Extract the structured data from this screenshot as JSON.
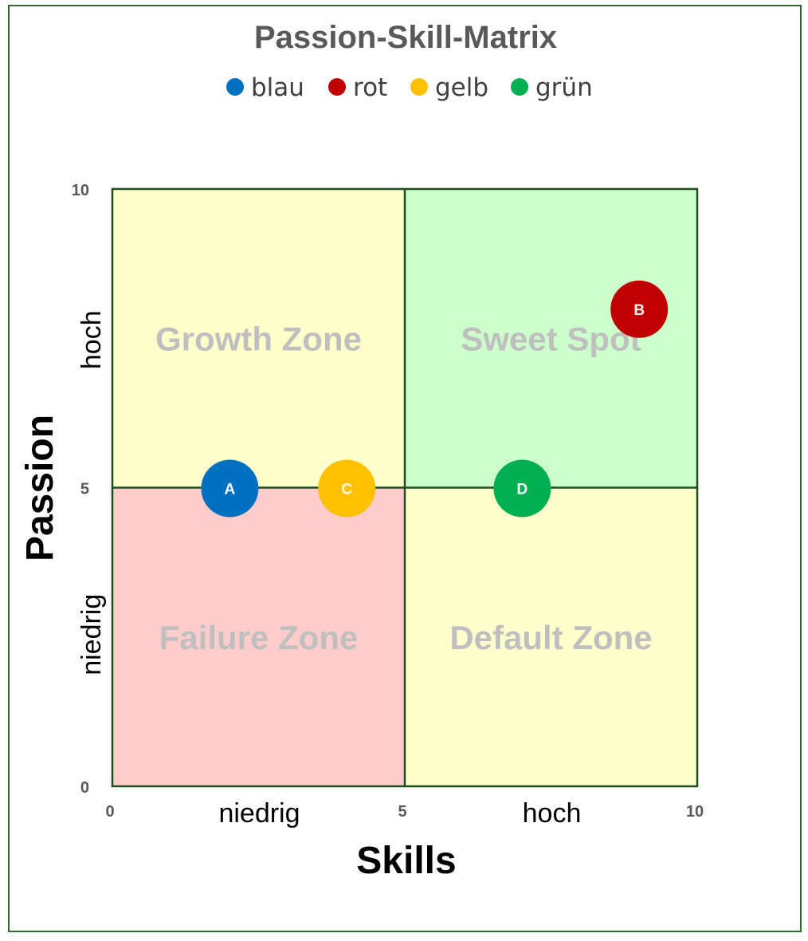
{
  "chart_data": {
    "type": "scatter",
    "title": "Passion-Skill-Matrix",
    "xlabel": "Skills",
    "ylabel": "Passion",
    "xlim": [
      0,
      10
    ],
    "ylim": [
      0,
      10
    ],
    "x_ticks": [
      "0",
      "5",
      "10"
    ],
    "y_ticks": [
      "0",
      "5",
      "10"
    ],
    "x_categories": [
      "niedrig",
      "hoch"
    ],
    "y_categories": [
      "niedrig",
      "hoch"
    ],
    "legend_position": "top",
    "zones": [
      {
        "name": "Growth Zone",
        "x": [
          0,
          5
        ],
        "y": [
          5,
          10
        ],
        "color": "#ffffcc"
      },
      {
        "name": "Sweet Spot",
        "x": [
          5,
          10
        ],
        "y": [
          5,
          10
        ],
        "color": "#ccffcc"
      },
      {
        "name": "Failure Zone",
        "x": [
          0,
          5
        ],
        "y": [
          0,
          5
        ],
        "color": "#ffcccc"
      },
      {
        "name": "Default Zone",
        "x": [
          5,
          10
        ],
        "y": [
          0,
          5
        ],
        "color": "#ffffcc"
      }
    ],
    "series": [
      {
        "name": "blau",
        "color": "#0070c0",
        "points": [
          {
            "label": "A",
            "x": 2,
            "y": 5
          }
        ]
      },
      {
        "name": "rot",
        "color": "#c00000",
        "points": [
          {
            "label": "B",
            "x": 9,
            "y": 8
          }
        ]
      },
      {
        "name": "gelb",
        "color": "#ffc000",
        "points": [
          {
            "label": "C",
            "x": 4,
            "y": 5
          }
        ]
      },
      {
        "name": "grün",
        "color": "#00b050",
        "points": [
          {
            "label": "D",
            "x": 7,
            "y": 5
          }
        ]
      }
    ]
  }
}
